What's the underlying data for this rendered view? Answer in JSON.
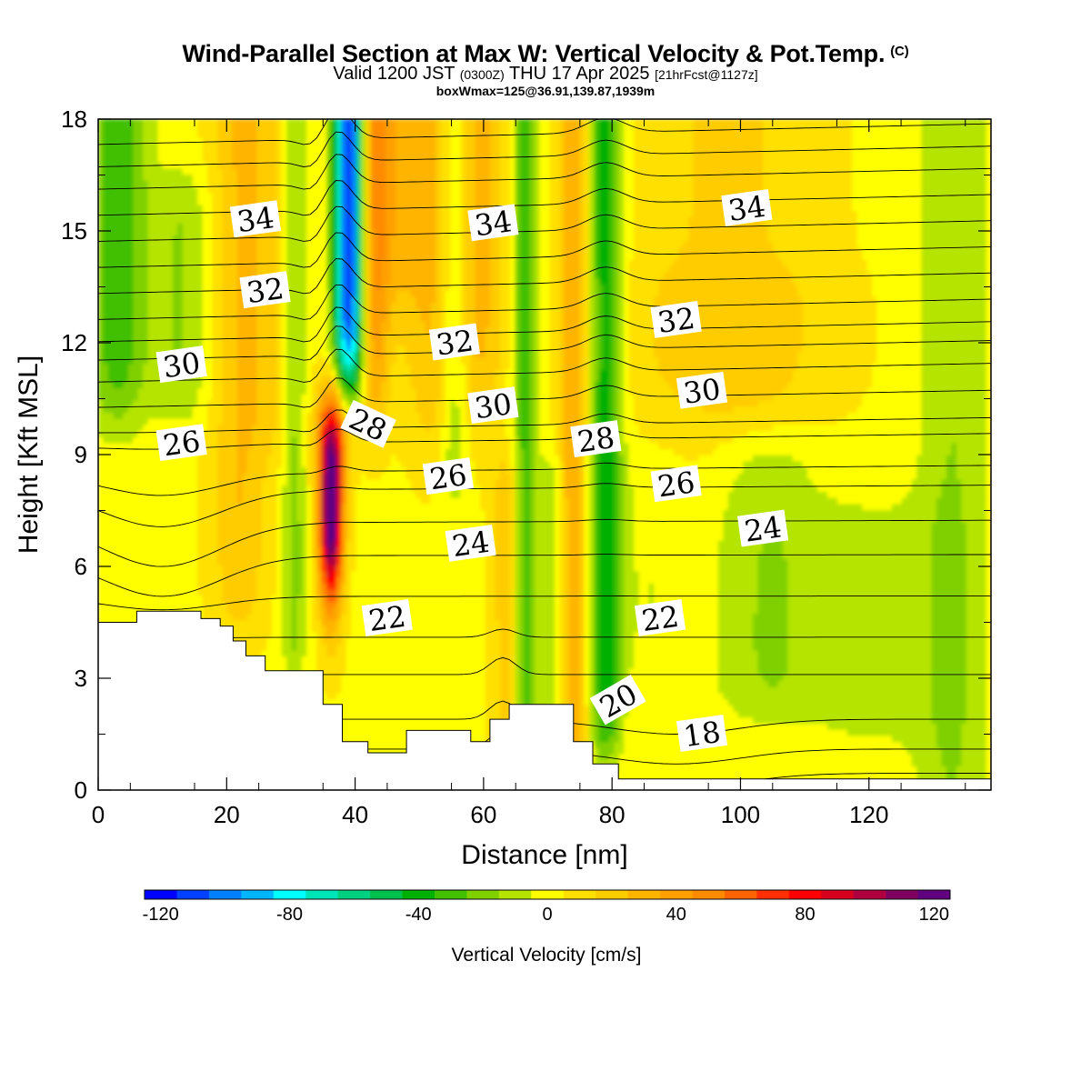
{
  "title": {
    "main": "Wind-Parallel Section at Max W: Vertical Velocity & Pot.Temp.",
    "copyright": "(C)",
    "valid_a": "Valid 1200 JST",
    "valid_b": "(0300Z)",
    "valid_c": "THU 17 Apr 2025",
    "valid_d": "[21hrFcst@1127z]",
    "box": "boxWmax=125@36.91,139.87,1939m"
  },
  "chart_data": {
    "type": "heatmap",
    "xlabel": "Distance [nm]",
    "ylabel": "Height [Kft MSL]",
    "xlim": [
      0,
      139
    ],
    "ylim": [
      0,
      18
    ],
    "x_ticks": [
      0,
      20,
      40,
      60,
      80,
      100,
      120
    ],
    "y_ticks": [
      0,
      3,
      6,
      9,
      12,
      15,
      18
    ],
    "grid": false,
    "colorbar": {
      "title": "Vertical Velocity [cm/s]",
      "min": -125,
      "max": 125,
      "step": 10,
      "tick_values": [
        -120,
        -80,
        -40,
        0,
        40,
        80,
        120
      ],
      "colors": [
        "#0000ff",
        "#0040ff",
        "#0080ff",
        "#00b4ff",
        "#00ffff",
        "#00e4b8",
        "#00d080",
        "#00c050",
        "#00b000",
        "#40c000",
        "#80d000",
        "#b4e400",
        "#ffff00",
        "#ffe000",
        "#ffcc00",
        "#ffb400",
        "#ffa000",
        "#ff8c00",
        "#ff6400",
        "#ff3000",
        "#ff0000",
        "#d80020",
        "#b00040",
        "#800060",
        "#600080"
      ]
    },
    "vertical_velocity_features": [
      {
        "name": "downdraft",
        "x_center": 38.5,
        "z_range": [
          10.5,
          18
        ],
        "w_min": -110
      },
      {
        "name": "updraft",
        "x_center": 36.0,
        "z_range": [
          3.2,
          10.5
        ],
        "w_max": 125
      },
      {
        "name": "sinking band",
        "x_center": 78.5,
        "z_range": [
          0.8,
          18
        ],
        "w_min": -40
      },
      {
        "name": "rising band",
        "x_center": 74.0,
        "z_range": [
          2.0,
          12
        ],
        "w_max": 30
      },
      {
        "name": "rising band",
        "x_center": 22.0,
        "z_range": [
          4.5,
          18
        ],
        "w_max": 30
      },
      {
        "name": "rising band",
        "x_center": 52.0,
        "z_range": [
          9,
          18
        ],
        "w_max": 25
      },
      {
        "name": "sinking band",
        "x_center": 3.0,
        "z_range": [
          10,
          18
        ],
        "w_min": -40
      }
    ],
    "isentropes": {
      "variable": "Potential Temperature",
      "levels": [
        18,
        20,
        22,
        24,
        26,
        28,
        30,
        32,
        34
      ],
      "labels": [
        {
          "value": 34,
          "x": 24.5,
          "z": 15.3
        },
        {
          "value": 34,
          "x": 61.5,
          "z": 15.2
        },
        {
          "value": 34,
          "x": 101,
          "z": 15.6
        },
        {
          "value": 32,
          "x": 26,
          "z": 13.4
        },
        {
          "value": 32,
          "x": 55.5,
          "z": 12.0
        },
        {
          "value": 32,
          "x": 90,
          "z": 12.6
        },
        {
          "value": 30,
          "x": 13,
          "z": 11.4
        },
        {
          "value": 30,
          "x": 61.5,
          "z": 10.3
        },
        {
          "value": 30,
          "x": 94,
          "z": 10.7
        },
        {
          "value": 26,
          "x": 13,
          "z": 9.3
        },
        {
          "value": 26,
          "x": 54.5,
          "z": 8.4
        },
        {
          "value": 26,
          "x": 90,
          "z": 8.2
        },
        {
          "value": 28,
          "x": 42,
          "z": 9.8
        },
        {
          "value": 28,
          "x": 77.5,
          "z": 9.4
        },
        {
          "value": 24,
          "x": 58,
          "z": 6.6
        },
        {
          "value": 24,
          "x": 103.5,
          "z": 7.0
        },
        {
          "value": 22,
          "x": 45,
          "z": 4.6
        },
        {
          "value": 22,
          "x": 87.5,
          "z": 4.6
        },
        {
          "value": 20,
          "x": 81,
          "z": 2.4
        },
        {
          "value": 18,
          "x": 94,
          "z": 1.5
        }
      ]
    },
    "terrain_profile": [
      [
        0,
        4.5
      ],
      [
        6,
        4.5
      ],
      [
        6,
        4.8
      ],
      [
        16,
        4.8
      ],
      [
        16,
        4.6
      ],
      [
        19,
        4.6
      ],
      [
        19,
        4.4
      ],
      [
        21,
        4.4
      ],
      [
        21,
        4.0
      ],
      [
        23,
        4.0
      ],
      [
        23,
        3.6
      ],
      [
        26,
        3.6
      ],
      [
        26,
        3.2
      ],
      [
        35,
        3.2
      ],
      [
        35,
        2.3
      ],
      [
        38,
        2.3
      ],
      [
        38,
        1.3
      ],
      [
        42,
        1.3
      ],
      [
        42,
        1.0
      ],
      [
        48,
        1.0
      ],
      [
        48,
        1.6
      ],
      [
        58,
        1.6
      ],
      [
        58,
        1.3
      ],
      [
        61,
        1.3
      ],
      [
        61,
        1.9
      ],
      [
        64,
        1.9
      ],
      [
        64,
        2.3
      ],
      [
        74,
        2.3
      ],
      [
        74,
        1.3
      ],
      [
        77,
        1.3
      ],
      [
        77,
        0.7
      ],
      [
        81,
        0.7
      ],
      [
        81,
        0.3
      ],
      [
        139,
        0.3
      ]
    ]
  }
}
